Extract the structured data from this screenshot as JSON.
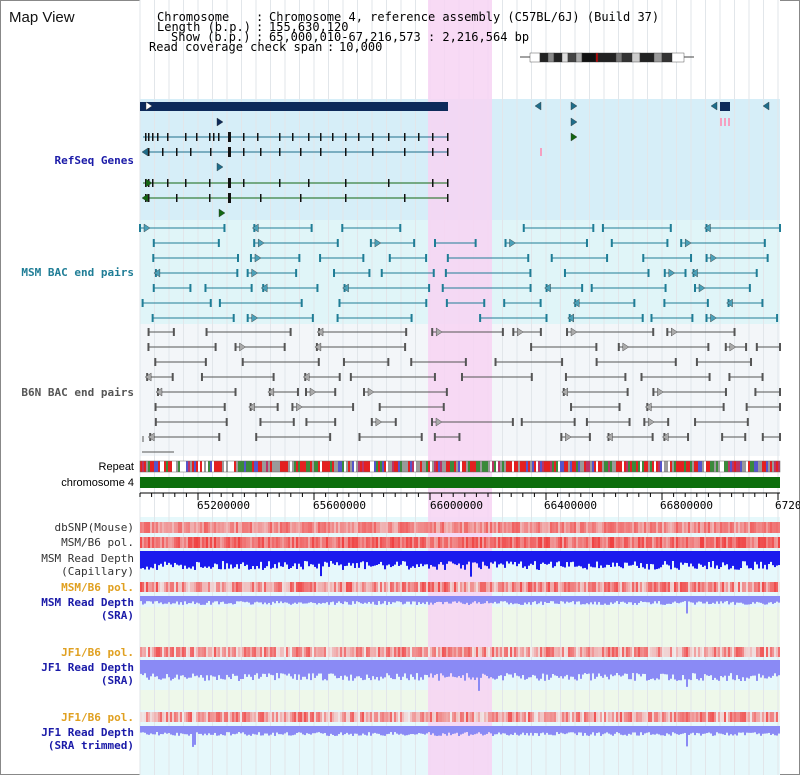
{
  "title": "Map View",
  "header": {
    "chromosome_key": "Chromosome",
    "chromosome_val": "Chromosome 4, reference assembly (C57BL/6J) (Build 37)",
    "length_key": "Length (b.p.)",
    "length_val": "155,630,120",
    "show_key": "Show (b.p.)",
    "show_val": "65,000,010-67,216,573 : 2,216,564 bp",
    "coverage_key": "Read coverage check span",
    "coverage_val": "10,000"
  },
  "tracks": {
    "refseq": "RefSeq Genes",
    "msm_bac": "MSM BAC end pairs",
    "b6n_bac": "B6N BAC end pairs",
    "repeat": "Repeat",
    "chromosome": "chromosome 4",
    "dbsnp": "dbSNP(Mouse)",
    "msm_b6_pol_1": "MSM/B6 pol.",
    "msm_read_depth_cap_1": "MSM Read Depth",
    "msm_read_depth_cap_2": "(Capillary)",
    "msm_b6_pol_2": "MSM/B6 pol.",
    "msm_read_depth_sra_1": "MSM Read Depth",
    "msm_read_depth_sra_2": "(SRA)",
    "jf1_b6_pol_1": "JF1/B6 pol.",
    "jf1_read_depth_sra_1": "JF1 Read Depth",
    "jf1_read_depth_sra_2": "(SRA)",
    "jf1_b6_pol_2": "JF1/B6 pol.",
    "jf1_read_depth_trim_1": "JF1 Read Depth",
    "jf1_read_depth_trim_2": "(SRA trimmed)"
  },
  "axis_ticks": [
    "65200000",
    "65600000",
    "66000000",
    "66400000",
    "66800000",
    "6720"
  ],
  "colors": {
    "highlight": "#f7d4f3",
    "refseq_bg": "#d6eef8",
    "msm_bg": "#e0f5f8",
    "b6n_bg": "#f3f6f9",
    "gene_dark": "#0d2a5a",
    "gene_blue": "#1f6d8a",
    "gene_green": "#116611",
    "bac_teal": "#1f7d96",
    "bac_gray": "#555555",
    "chromosome_bar": "#0c6e0c",
    "depth_blue": "#1a1aee",
    "depth_light": "#8a8af5",
    "pol_red": "#ee3333"
  }
}
